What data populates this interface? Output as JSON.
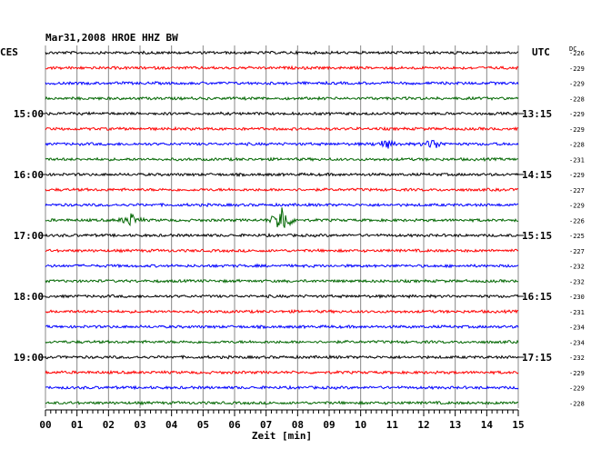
{
  "header": {
    "title": "Mar31,2008   HROE HHZ BW",
    "left_tz": "CES",
    "right_tz": "UTC",
    "dc_label": "DC"
  },
  "chart_data": {
    "type": "line",
    "title": "Mar31,2008   HROE HHZ BW",
    "xlabel": "Zeit [min]",
    "xlim": [
      0,
      15
    ],
    "x_ticks": [
      "00",
      "01",
      "02",
      "03",
      "04",
      "05",
      "06",
      "07",
      "08",
      "09",
      "10",
      "11",
      "12",
      "13",
      "14",
      "15"
    ],
    "trace_count": 24,
    "trace_colors_cycle": [
      "#000000",
      "#ff0000",
      "#0000ff",
      "#006600"
    ],
    "left_time_labels": [
      {
        "trace": 4,
        "label": "15:00"
      },
      {
        "trace": 8,
        "label": "16:00"
      },
      {
        "trace": 12,
        "label": "17:00"
      },
      {
        "trace": 16,
        "label": "18:00"
      },
      {
        "trace": 20,
        "label": "19:00"
      }
    ],
    "right_time_labels": [
      {
        "trace": 4,
        "label": "13:15"
      },
      {
        "trace": 8,
        "label": "14:15"
      },
      {
        "trace": 12,
        "label": "15:15"
      },
      {
        "trace": 16,
        "label": "16:15"
      },
      {
        "trace": 20,
        "label": "17:15"
      }
    ],
    "dc_offsets": [
      "-226",
      "-229",
      "-229",
      "-228",
      "-229",
      "-229",
      "-228",
      "-231",
      "-229",
      "-227",
      "-229",
      "-226",
      "-225",
      "-227",
      "-232",
      "-232",
      "-230",
      "-231",
      "-234",
      "-234",
      "-232",
      "-229",
      "-229",
      "-228"
    ],
    "events": [
      {
        "trace": 6,
        "x_min": 10.8,
        "amplitude": 0.25
      },
      {
        "trace": 6,
        "x_min": 12.3,
        "amplitude": 0.3
      },
      {
        "trace": 11,
        "x_min": 2.7,
        "amplitude": 0.35
      },
      {
        "trace": 11,
        "x_min": 7.5,
        "amplitude": 0.9
      }
    ],
    "grid": true
  }
}
